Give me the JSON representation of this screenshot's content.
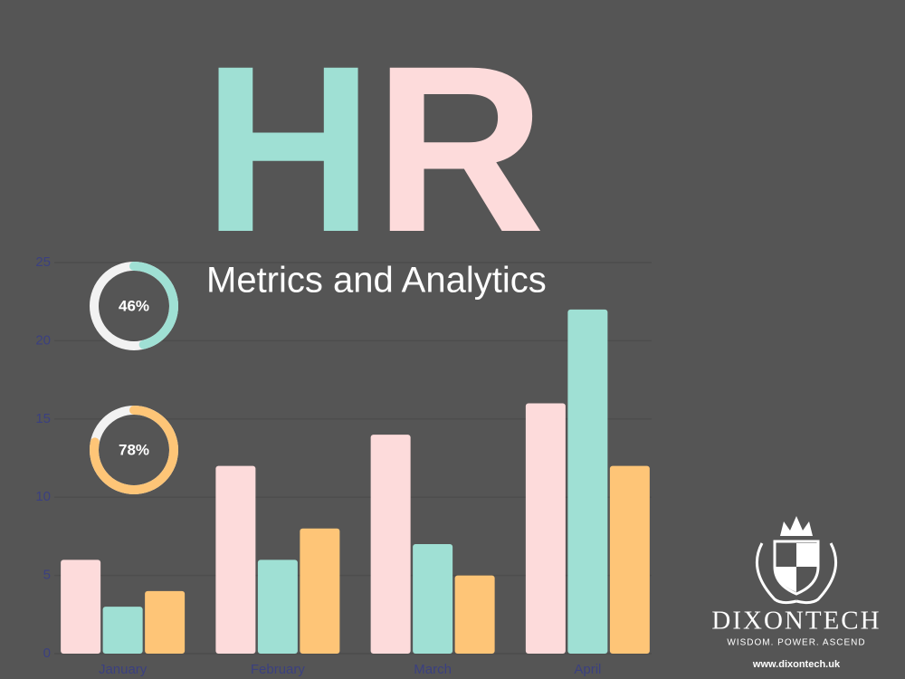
{
  "chart_data": {
    "type": "bar",
    "title": "HR",
    "title_colors": [
      "#9fe0d4",
      "#fddbdb"
    ],
    "subtitle": "Metrics and Analytics",
    "categories": [
      "January",
      "February",
      "March",
      "April"
    ],
    "series": [
      {
        "color": "#fddbdb",
        "values": [
          6,
          12,
          14,
          16
        ]
      },
      {
        "color": "#9fe0d4",
        "values": [
          3,
          6,
          7,
          22
        ]
      },
      {
        "color": "#fec577",
        "values": [
          4,
          8,
          5,
          12
        ]
      }
    ],
    "ylim": [
      0,
      25
    ],
    "yticks": [
      0,
      5,
      10,
      15,
      20,
      25
    ],
    "grid": true
  },
  "gauges": [
    {
      "value": 46,
      "value_label": "46%",
      "color": "#9fe0d4"
    },
    {
      "value": 78,
      "value_label": "78%",
      "color": "#fec577"
    }
  ],
  "brand": {
    "name": "DIXONTECH",
    "tagline": "WISDOM.  POWER.  ASCEND",
    "url": "www.dixontech.uk"
  }
}
